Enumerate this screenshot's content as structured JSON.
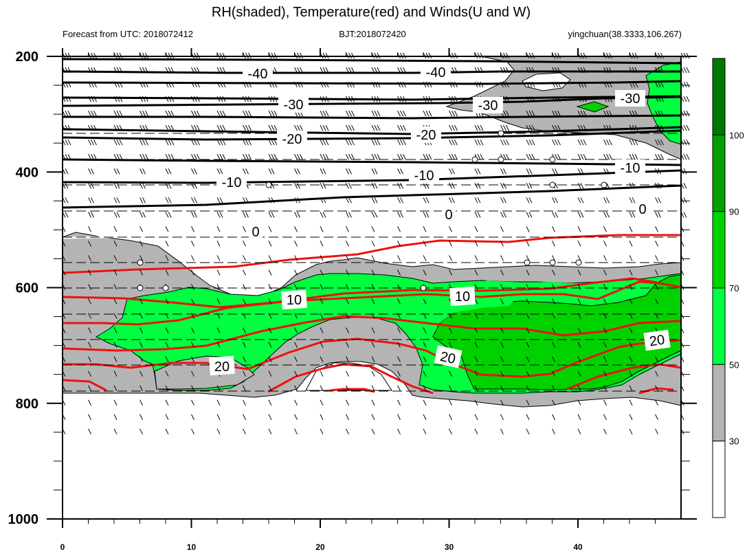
{
  "chart_data": {
    "type": "contour",
    "title": "RH(shaded), Temperature(red) and Winds(U and W)",
    "subtitle_left": "Forecast from UTC: 2018072412",
    "subtitle_center": "BJT:2018072420",
    "subtitle_right": "yingchuan(38.3333,106.267)",
    "x_ticks": [
      "0",
      "10",
      "20",
      "30",
      "40"
    ],
    "x_tick_values": [
      0,
      10,
      20,
      30,
      40
    ],
    "xlim": [
      0,
      48
    ],
    "y_ticks": [
      "200",
      "400",
      "600",
      "800",
      "1000"
    ],
    "y_tick_values": [
      200,
      400,
      600,
      800,
      1000
    ],
    "ylim": [
      1000,
      200
    ],
    "colorbar": {
      "labels": [
        "30",
        "50",
        "70",
        "90",
        "100"
      ],
      "levels": [
        30,
        50,
        70,
        90,
        100
      ],
      "colors": [
        "#ffffff",
        "#b4b4b4",
        "#00ff40",
        "#00d200",
        "#00a000",
        "#007800"
      ]
    },
    "temperature_labels_black": [
      "-40",
      "-40",
      "-30",
      "-30",
      "-30",
      "-20",
      "-20",
      "-10",
      "-10",
      "-10",
      "0",
      "0",
      "0"
    ],
    "temperature_labels_red": [
      "10",
      "10",
      "20",
      "20",
      "20"
    ]
  }
}
